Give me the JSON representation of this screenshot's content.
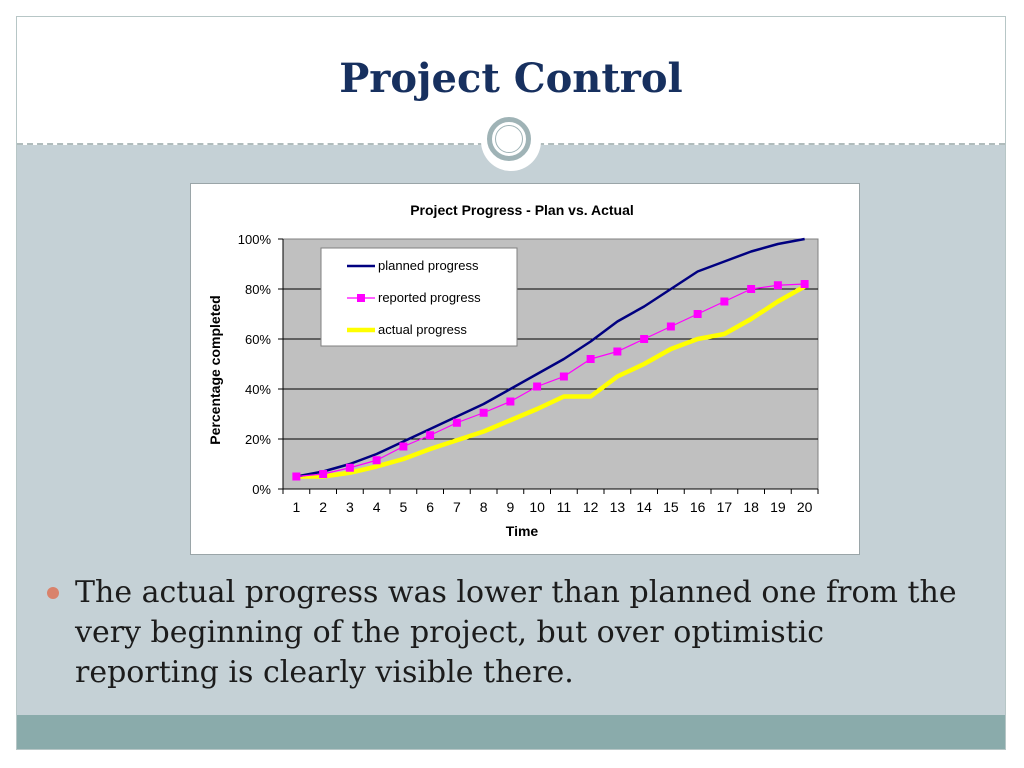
{
  "slide": {
    "title": "Project Control",
    "bullet": "The actual progress was lower than planned one from the very beginning of the project, but over optimistic reporting is clearly visible there."
  },
  "colors": {
    "title": "#17305f",
    "background": "#c5d1d6",
    "footer_band": "#8aabab",
    "bullet": "#d9826b",
    "plot_area": "#c0c0c0",
    "planned": "#000080",
    "reported": "#ff00ff",
    "actual": "#ffff00"
  },
  "chart_data": {
    "type": "line",
    "title": "Project Progress - Plan vs. Actual",
    "xlabel": "Time",
    "ylabel": "Percentage completed",
    "categories": [
      "1",
      "2",
      "3",
      "4",
      "5",
      "6",
      "7",
      "8",
      "9",
      "10",
      "11",
      "12",
      "13",
      "14",
      "15",
      "16",
      "17",
      "18",
      "19",
      "20"
    ],
    "ylim": [
      0,
      100
    ],
    "y_ticks": [
      "0%",
      "20%",
      "40%",
      "60%",
      "80%",
      "100%"
    ],
    "grid": true,
    "legend_placement": "top-left inside plot",
    "series": [
      {
        "name": "planned progress",
        "values": [
          5,
          7,
          10,
          14,
          19,
          24,
          29,
          34,
          40,
          46,
          52,
          59,
          67,
          73,
          80,
          87,
          91,
          95,
          98,
          100
        ]
      },
      {
        "name": "reported progress",
        "values": [
          5,
          6,
          8.5,
          11.5,
          17,
          21.5,
          26.5,
          30.5,
          35,
          41,
          45,
          52,
          55,
          60,
          65,
          70,
          75,
          80,
          81.5,
          82
        ]
      },
      {
        "name": "actual progress",
        "values": [
          5,
          5,
          6.5,
          9,
          12,
          16,
          19.5,
          23,
          27.5,
          32,
          37,
          37,
          45,
          50,
          56,
          60,
          62,
          68,
          75,
          81
        ]
      }
    ]
  }
}
